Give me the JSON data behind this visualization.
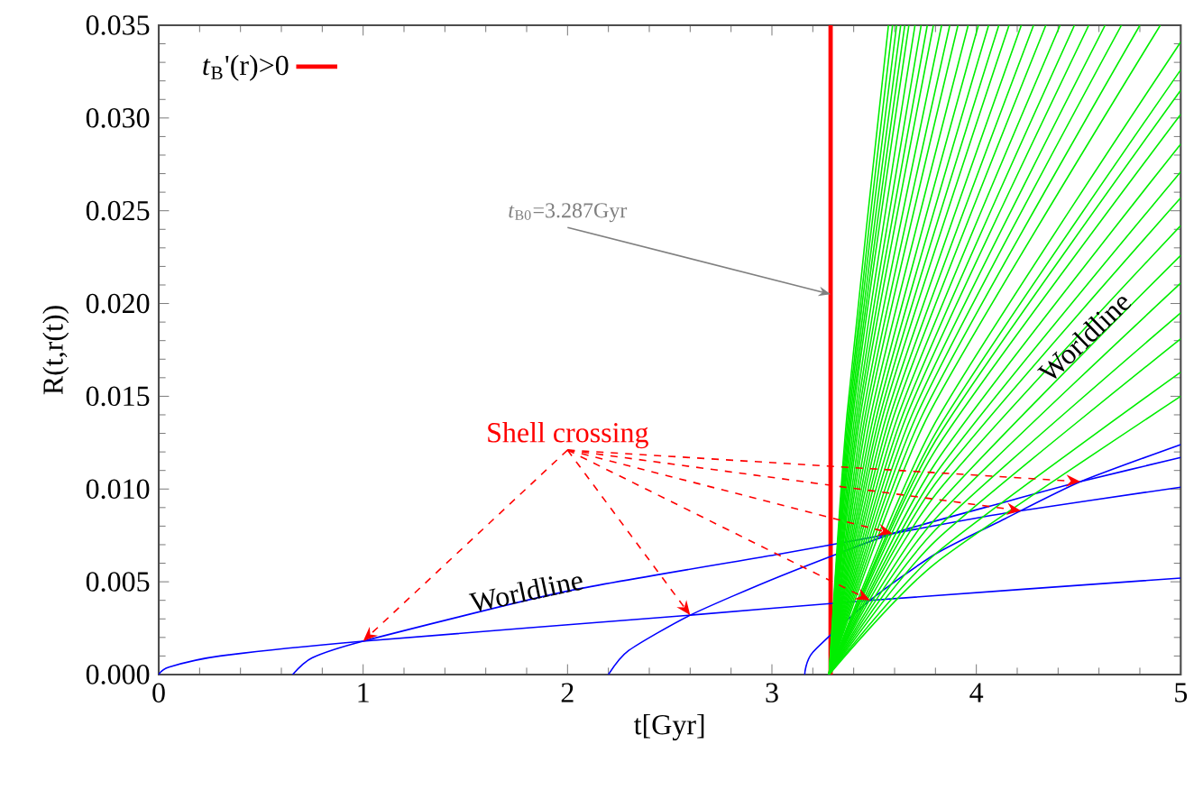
{
  "chart_data": {
    "type": "line",
    "xlabel": "t[Gyr]",
    "ylabel": "R(t,r(t))",
    "xlim": [
      0,
      5
    ],
    "ylim": [
      0,
      0.035
    ],
    "xticks": [
      0,
      1,
      2,
      3,
      4,
      5
    ],
    "yticks": [
      {
        "value": 0,
        "label": "0.000"
      },
      {
        "value": 0.005,
        "label": "0.005"
      },
      {
        "value": 0.01,
        "label": "0.010"
      },
      {
        "value": 0.015,
        "label": "0.015"
      },
      {
        "value": 0.02,
        "label": "0.020"
      },
      {
        "value": 0.025,
        "label": "0.025"
      },
      {
        "value": 0.03,
        "label": "0.030"
      },
      {
        "value": 0.035,
        "label": "0.035"
      }
    ],
    "legend": "top left",
    "annotations": [
      {
        "text": "Shell crossing",
        "x": 1,
        "y": 0.0018
      },
      {
        "text": "Worldline",
        "x": 1.8,
        "y": 0.0045
      },
      {
        "text": "Worldline",
        "x": 4.53,
        "y": 0.0182
      },
      {
        "text": "*t*$_{B0}$=3.287Gyr",
        "x": 3.287,
        "y": 0.0205
      }
    ],
    "series": [
      {
        "name": "*t*$_{B}$'(r)>0",
        "color": "#ff0000",
        "x": [
          3.287,
          3.287
        ],
        "values": [
          0,
          0.035
        ]
      },
      {
        "color": "#0000ff",
        "x": [
          0,
          0.05,
          0.3,
          1,
          2.6,
          3.48,
          5
        ],
        "values": [
          0,
          0.0004,
          0.001,
          0.0018,
          0.0032,
          0.004,
          0.0052
        ]
      },
      {
        "color": "#0000ff",
        "x": [
          0.655,
          0.75,
          1,
          2,
          3.04,
          3.59,
          4.14,
          5
        ],
        "values": [
          0,
          0.0009,
          0.0018,
          0.0045,
          0.0065,
          0.0076,
          0.0087,
          0.0101
        ]
      },
      {
        "color": "#0000ff",
        "x": [
          2.2,
          2.3,
          2.6,
          3.04,
          3.59,
          4.14,
          4.51,
          5
        ],
        "values": [
          0,
          0.0013,
          0.0032,
          0.0053,
          0.0076,
          0.0093,
          0.0104,
          0.0117
        ]
      },
      {
        "color": "#0000ff",
        "x": [
          3.16,
          3.2,
          3.48,
          3.8,
          4.14,
          4.51,
          5
        ],
        "values": [
          0,
          0.0012,
          0.004,
          0.0065,
          0.0084,
          0.0104,
          0.0124
        ]
      },
      {
        "color": "#00ee00",
        "x": [
          3.28,
          3.367,
          3.57
        ],
        "values": [
          0,
          0.014,
          0.035
        ]
      },
      {
        "color": "#00ee00",
        "x": [
          3.28,
          3.373,
          3.59
        ],
        "values": [
          0,
          0.014,
          0.035
        ]
      },
      {
        "color": "#00ee00",
        "x": [
          3.28,
          3.379,
          3.61
        ],
        "values": [
          0,
          0.014,
          0.035
        ]
      },
      {
        "color": "#00ee00",
        "x": [
          3.28,
          3.385,
          3.63
        ],
        "values": [
          0,
          0.014,
          0.035
        ]
      },
      {
        "color": "#00ee00",
        "x": [
          3.28,
          3.391,
          3.65
        ],
        "values": [
          0,
          0.014,
          0.035
        ]
      },
      {
        "color": "#00ee00",
        "x": [
          3.28,
          3.397,
          3.67
        ],
        "values": [
          0,
          0.014,
          0.035
        ]
      },
      {
        "color": "#00ee00",
        "x": [
          3.28,
          3.406,
          3.7
        ],
        "values": [
          0,
          0.014,
          0.035
        ]
      },
      {
        "color": "#00ee00",
        "x": [
          3.28,
          3.415,
          3.73
        ],
        "values": [
          0,
          0.014,
          0.035
        ]
      },
      {
        "color": "#00ee00",
        "x": [
          3.28,
          3.424,
          3.76
        ],
        "values": [
          0,
          0.014,
          0.035
        ]
      },
      {
        "color": "#00ee00",
        "x": [
          3.28,
          3.433,
          3.79
        ],
        "values": [
          0,
          0.014,
          0.035
        ]
      },
      {
        "color": "#00ee00",
        "x": [
          3.28,
          3.445,
          3.83
        ],
        "values": [
          0,
          0.014,
          0.035
        ]
      },
      {
        "color": "#00ee00",
        "x": [
          3.28,
          3.457,
          3.87
        ],
        "values": [
          0,
          0.014,
          0.035
        ]
      },
      {
        "color": "#00ee00",
        "x": [
          3.28,
          3.469,
          3.91
        ],
        "values": [
          0,
          0.014,
          0.035
        ]
      },
      {
        "color": "#00ee00",
        "x": [
          3.28,
          3.484,
          3.96
        ],
        "values": [
          0,
          0.014,
          0.035
        ]
      },
      {
        "color": "#00ee00",
        "x": [
          3.28,
          3.499,
          4.01
        ],
        "values": [
          0,
          0.014,
          0.035
        ]
      },
      {
        "color": "#00ee00",
        "x": [
          3.28,
          3.514,
          4.06
        ],
        "values": [
          0,
          0.014,
          0.035
        ]
      },
      {
        "color": "#00ee00",
        "x": [
          3.28,
          3.529,
          4.11
        ],
        "values": [
          0,
          0.014,
          0.035
        ]
      },
      {
        "color": "#00ee00",
        "x": [
          3.28,
          3.544,
          4.16
        ],
        "values": [
          0,
          0.014,
          0.035
        ]
      },
      {
        "color": "#00ee00",
        "x": [
          3.28,
          3.562,
          4.22
        ],
        "values": [
          0,
          0.014,
          0.035
        ]
      },
      {
        "color": "#00ee00",
        "x": [
          3.28,
          3.58,
          4.28
        ],
        "values": [
          0,
          0.014,
          0.035
        ]
      },
      {
        "color": "#00ee00",
        "x": [
          3.28,
          3.598,
          4.34
        ],
        "values": [
          0,
          0.014,
          0.035
        ]
      },
      {
        "color": "#00ee00",
        "x": [
          3.28,
          3.619,
          4.41
        ],
        "values": [
          0,
          0.014,
          0.035
        ]
      },
      {
        "color": "#00ee00",
        "x": [
          3.28,
          3.64,
          4.48
        ],
        "values": [
          0,
          0.014,
          0.035
        ]
      },
      {
        "color": "#00ee00",
        "x": [
          3.28,
          3.661,
          4.55
        ],
        "values": [
          0,
          0.014,
          0.035
        ]
      },
      {
        "color": "#00ee00",
        "x": [
          3.28,
          3.685,
          4.63
        ],
        "values": [
          0,
          0.014,
          0.035
        ]
      },
      {
        "color": "#00ee00",
        "x": [
          3.28,
          3.709,
          4.71
        ],
        "values": [
          0,
          0.014,
          0.035
        ]
      },
      {
        "color": "#00ee00",
        "x": [
          3.28,
          3.736,
          4.8
        ],
        "values": [
          0,
          0.014,
          0.035
        ]
      },
      {
        "color": "#00ee00",
        "x": [
          3.28,
          3.766,
          4.9
        ],
        "values": [
          0,
          0.014,
          0.035
        ]
      },
      {
        "color": "#00ee00",
        "x": [
          3.28,
          3.8,
          5
        ],
        "values": [
          0,
          0.0136,
          0.0341
        ]
      },
      {
        "color": "#00ee00",
        "x": [
          3.28,
          3.8,
          5
        ],
        "values": [
          0,
          0.013,
          0.0326
        ]
      },
      {
        "color": "#00ee00",
        "x": [
          3.28,
          3.8,
          5
        ],
        "values": [
          0,
          0.0126,
          0.0315
        ]
      },
      {
        "color": "#00ee00",
        "x": [
          3.28,
          3.8,
          5
        ],
        "values": [
          0,
          0.0121,
          0.0302
        ]
      },
      {
        "color": "#00ee00",
        "x": [
          3.28,
          3.8,
          5
        ],
        "values": [
          0,
          0.0114,
          0.0286
        ]
      },
      {
        "color": "#00ee00",
        "x": [
          3.28,
          3.8,
          5
        ],
        "values": [
          0,
          0.0108,
          0.0271
        ]
      },
      {
        "color": "#00ee00",
        "x": [
          3.28,
          3.8,
          5
        ],
        "values": [
          0,
          0.0103,
          0.0257
        ]
      },
      {
        "color": "#00ee00",
        "x": [
          3.28,
          3.8,
          5
        ],
        "values": [
          0,
          0.0097,
          0.0242
        ]
      },
      {
        "color": "#00ee00",
        "x": [
          3.28,
          3.8,
          5
        ],
        "values": [
          0,
          0.009,
          0.0226
        ]
      },
      {
        "color": "#00ee00",
        "x": [
          3.28,
          3.8,
          5
        ],
        "values": [
          0,
          0.0084,
          0.0211
        ]
      },
      {
        "color": "#00ee00",
        "x": [
          3.28,
          3.8,
          5
        ],
        "values": [
          0,
          0.0078,
          0.0195
        ]
      },
      {
        "color": "#00ee00",
        "x": [
          3.28,
          3.8,
          5
        ],
        "values": [
          0,
          0.0072,
          0.0181
        ]
      },
      {
        "color": "#00ee00",
        "x": [
          3.28,
          3.8,
          5
        ],
        "values": [
          0,
          0.0065,
          0.0163
        ]
      },
      {
        "color": "#00ee00",
        "x": [
          3.28,
          3.8,
          5
        ],
        "values": [
          0,
          0.006,
          0.015
        ]
      }
    ]
  }
}
